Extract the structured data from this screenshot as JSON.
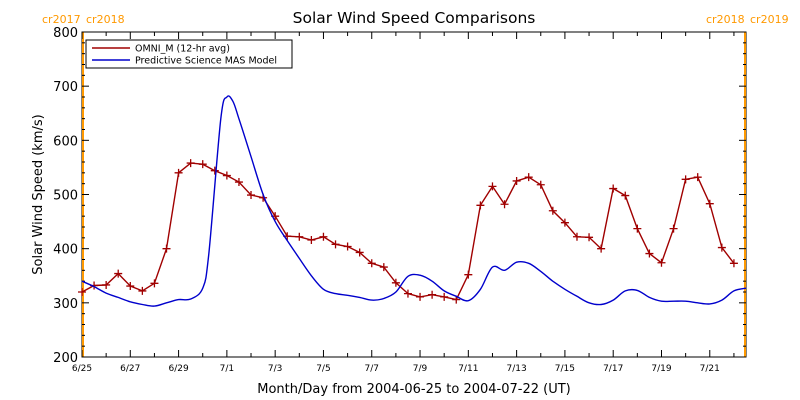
{
  "chart_data": {
    "type": "line",
    "title": "Solar Wind Speed Comparisons",
    "xlabel": "Month/Day from 2004-06-25 to 2004-07-22 (UT)",
    "ylabel": "Solar Wind Speed (km/s)",
    "ylim": [
      200,
      800
    ],
    "yticks": [
      200,
      300,
      400,
      500,
      600,
      700,
      800
    ],
    "xlim": [
      "2004-06-25",
      "2004-07-22"
    ],
    "xtick_labels": [
      "6/25",
      "6/27",
      "6/29",
      "7/1",
      "7/3",
      "7/5",
      "7/7",
      "7/9",
      "7/11",
      "7/13",
      "7/15",
      "7/17",
      "7/19",
      "7/21"
    ],
    "carrington_markers": [
      {
        "left_label": "cr2017",
        "right_label": "cr2018",
        "date": "2004-06-25",
        "color": "#ff9900"
      },
      {
        "left_label": "cr2018",
        "right_label": "cr2019",
        "date": "2004-07-22",
        "color": "#ff9900"
      }
    ],
    "legend": {
      "placement": "top-left"
    },
    "series": [
      {
        "name": "OMNI_M (12-hr avg)",
        "color": "#a00000",
        "markers": "plus",
        "points": [
          [
            "2004-06-25 00:00",
            320
          ],
          [
            "2004-06-25 12:00",
            332
          ],
          [
            "2004-06-26 00:00",
            333
          ],
          [
            "2004-06-26 12:00",
            354
          ],
          [
            "2004-06-27 00:00",
            331
          ],
          [
            "2004-06-27 12:00",
            322
          ],
          [
            "2004-06-28 00:00",
            336
          ],
          [
            "2004-06-28 12:00",
            400
          ],
          [
            "2004-06-29 00:00",
            540
          ],
          [
            "2004-06-29 12:00",
            558
          ],
          [
            "2004-06-30 00:00",
            556
          ],
          [
            "2004-06-30 12:00",
            544
          ],
          [
            "2004-07-01 00:00",
            535
          ],
          [
            "2004-07-01 12:00",
            523
          ],
          [
            "2004-07-02 00:00",
            499
          ],
          [
            "2004-07-02 12:00",
            494
          ],
          [
            "2004-07-03 00:00",
            460
          ],
          [
            "2004-07-03 12:00",
            423
          ],
          [
            "2004-07-04 00:00",
            422
          ],
          [
            "2004-07-04 12:00",
            416
          ],
          [
            "2004-07-05 00:00",
            422
          ],
          [
            "2004-07-05 12:00",
            408
          ],
          [
            "2004-07-06 00:00",
            404
          ],
          [
            "2004-07-06 12:00",
            393
          ],
          [
            "2004-07-07 00:00",
            373
          ],
          [
            "2004-07-07 12:00",
            366
          ],
          [
            "2004-07-08 00:00",
            337
          ],
          [
            "2004-07-08 12:00",
            317
          ],
          [
            "2004-07-09 00:00",
            311
          ],
          [
            "2004-07-09 12:00",
            315
          ],
          [
            "2004-07-10 00:00",
            311
          ],
          [
            "2004-07-10 12:00",
            306
          ],
          [
            "2004-07-11 00:00",
            352
          ],
          [
            "2004-07-11 12:00",
            480
          ],
          [
            "2004-07-12 00:00",
            515
          ],
          [
            "2004-07-12 12:00",
            482
          ],
          [
            "2004-07-13 00:00",
            525
          ],
          [
            "2004-07-13 12:00",
            532
          ],
          [
            "2004-07-14 00:00",
            518
          ],
          [
            "2004-07-14 12:00",
            470
          ],
          [
            "2004-07-15 00:00",
            448
          ],
          [
            "2004-07-15 12:00",
            422
          ],
          [
            "2004-07-16 00:00",
            421
          ],
          [
            "2004-07-16 12:00",
            400
          ],
          [
            "2004-07-17 00:00",
            511
          ],
          [
            "2004-07-17 12:00",
            498
          ],
          [
            "2004-07-18 00:00",
            437
          ],
          [
            "2004-07-18 12:00",
            391
          ],
          [
            "2004-07-19 00:00",
            374
          ],
          [
            "2004-07-19 12:00",
            437
          ],
          [
            "2004-07-20 00:00",
            528
          ],
          [
            "2004-07-20 12:00",
            532
          ],
          [
            "2004-07-21 00:00",
            483
          ],
          [
            "2004-07-21 12:00",
            402
          ],
          [
            "2004-07-22 00:00",
            373
          ]
        ]
      },
      {
        "name": "Predictive Science MAS Model",
        "color": "#0000cc",
        "markers": "none",
        "points": [
          [
            "2004-06-25 00:00",
            340
          ],
          [
            "2004-06-25 12:00",
            330
          ],
          [
            "2004-06-26 00:00",
            318
          ],
          [
            "2004-06-26 12:00",
            310
          ],
          [
            "2004-06-27 00:00",
            302
          ],
          [
            "2004-06-27 12:00",
            297
          ],
          [
            "2004-06-28 00:00",
            294
          ],
          [
            "2004-06-28 12:00",
            300
          ],
          [
            "2004-06-29 00:00",
            306
          ],
          [
            "2004-06-29 12:00",
            307
          ],
          [
            "2004-06-30 00:00",
            327
          ],
          [
            "2004-06-30 06:00",
            390
          ],
          [
            "2004-06-30 18:00",
            640
          ],
          [
            "2004-07-01 00:00",
            680
          ],
          [
            "2004-07-01 06:00",
            672
          ],
          [
            "2004-07-01 12:00",
            640
          ],
          [
            "2004-07-02 00:00",
            570
          ],
          [
            "2004-07-02 12:00",
            500
          ],
          [
            "2004-07-03 00:00",
            450
          ],
          [
            "2004-07-03 12:00",
            415
          ],
          [
            "2004-07-04 00:00",
            382
          ],
          [
            "2004-07-04 12:00",
            350
          ],
          [
            "2004-07-05 00:00",
            325
          ],
          [
            "2004-07-05 12:00",
            317
          ],
          [
            "2004-07-06 00:00",
            314
          ],
          [
            "2004-07-06 12:00",
            310
          ],
          [
            "2004-07-07 00:00",
            305
          ],
          [
            "2004-07-07 12:00",
            308
          ],
          [
            "2004-07-08 00:00",
            320
          ],
          [
            "2004-07-08 12:00",
            349
          ],
          [
            "2004-07-09 00:00",
            351
          ],
          [
            "2004-07-09 12:00",
            340
          ],
          [
            "2004-07-10 00:00",
            322
          ],
          [
            "2004-07-10 12:00",
            312
          ],
          [
            "2004-07-11 00:00",
            304
          ],
          [
            "2004-07-11 12:00",
            325
          ],
          [
            "2004-07-12 00:00",
            366
          ],
          [
            "2004-07-12 12:00",
            360
          ],
          [
            "2004-07-13 00:00",
            375
          ],
          [
            "2004-07-13 12:00",
            373
          ],
          [
            "2004-07-14 00:00",
            358
          ],
          [
            "2004-07-14 12:00",
            340
          ],
          [
            "2004-07-15 00:00",
            325
          ],
          [
            "2004-07-15 12:00",
            312
          ],
          [
            "2004-07-16 00:00",
            300
          ],
          [
            "2004-07-16 12:00",
            297
          ],
          [
            "2004-07-17 00:00",
            305
          ],
          [
            "2004-07-17 12:00",
            322
          ],
          [
            "2004-07-18 00:00",
            323
          ],
          [
            "2004-07-18 12:00",
            310
          ],
          [
            "2004-07-19 00:00",
            303
          ],
          [
            "2004-07-19 12:00",
            303
          ],
          [
            "2004-07-20 00:00",
            303
          ],
          [
            "2004-07-20 12:00",
            300
          ],
          [
            "2004-07-21 00:00",
            298
          ],
          [
            "2004-07-21 12:00",
            305
          ],
          [
            "2004-07-22 00:00",
            322
          ],
          [
            "2004-07-22 12:00",
            327
          ]
        ]
      }
    ]
  }
}
